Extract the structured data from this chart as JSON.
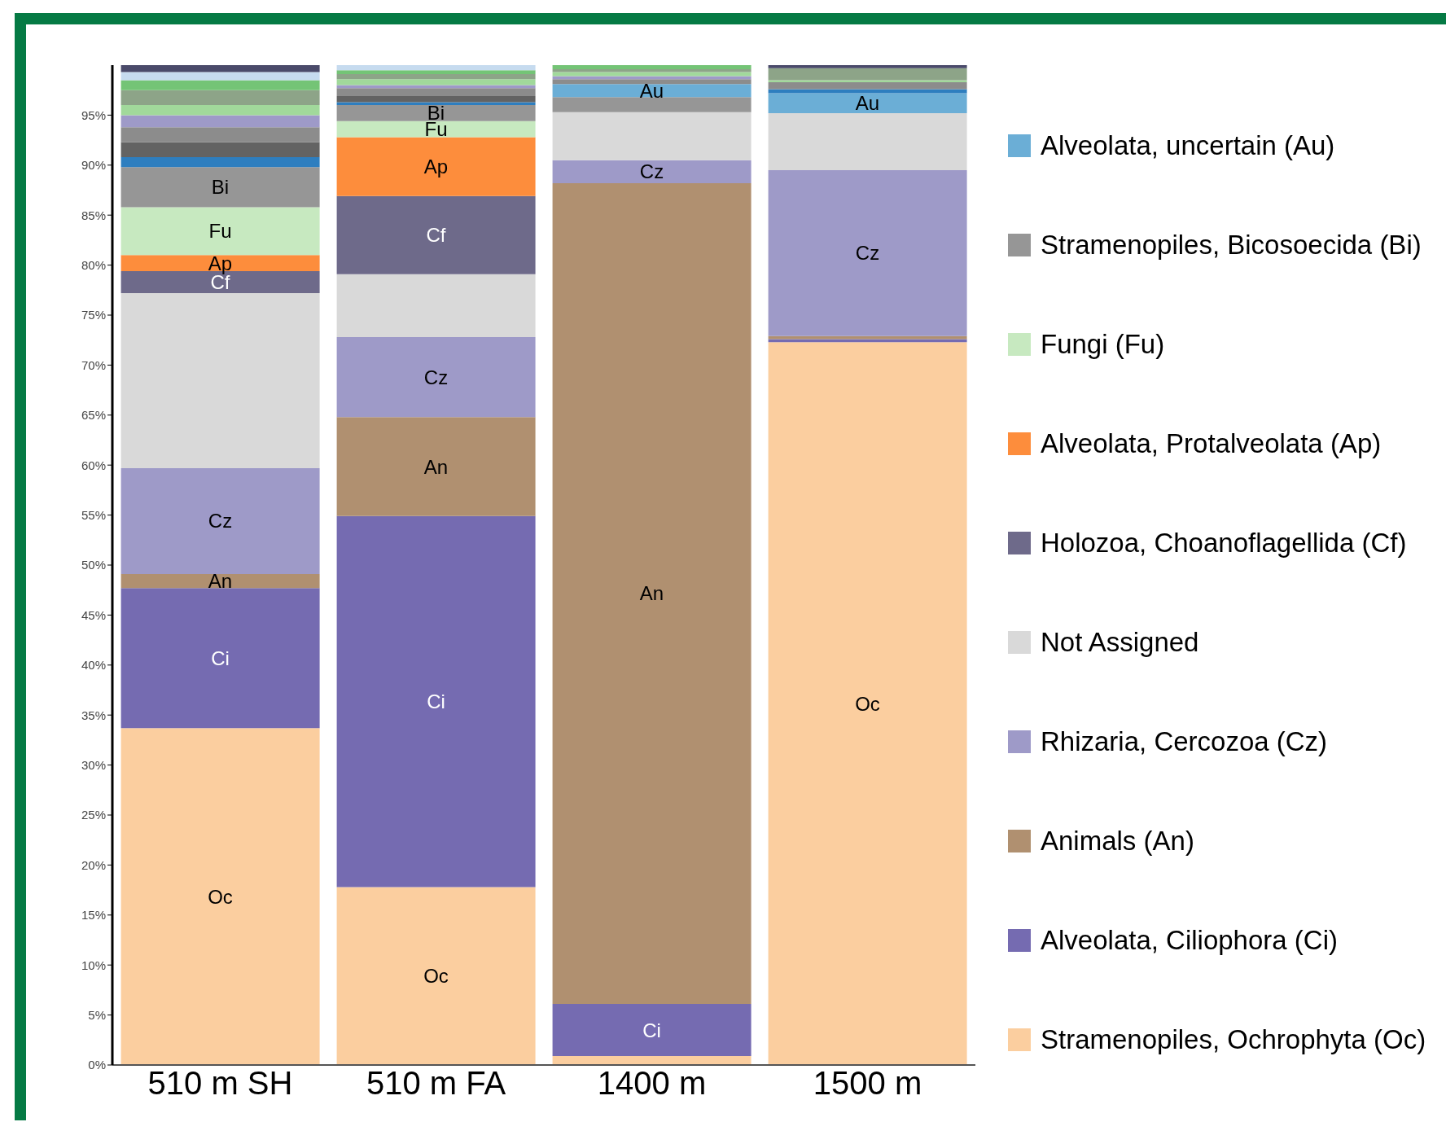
{
  "chart_data": {
    "type": "bar",
    "stacked": true,
    "categories": [
      "510 m SH",
      "510 m FA",
      "1400 m",
      "1500 m"
    ],
    "ylim": [
      0,
      100
    ],
    "yticks": [
      {
        "value": 0,
        "label": "0%"
      },
      {
        "value": 5,
        "label": "5%"
      },
      {
        "value": 10,
        "label": "10%"
      },
      {
        "value": 15,
        "label": "15%"
      },
      {
        "value": 20,
        "label": "20%"
      },
      {
        "value": 25,
        "label": "25%"
      },
      {
        "value": 30,
        "label": "30%"
      },
      {
        "value": 35,
        "label": "35%"
      },
      {
        "value": 40,
        "label": "40%"
      },
      {
        "value": 45,
        "label": "45%"
      },
      {
        "value": 50,
        "label": "50%"
      },
      {
        "value": 55,
        "label": "55%"
      },
      {
        "value": 60,
        "label": "60%"
      },
      {
        "value": 65,
        "label": "65%"
      },
      {
        "value": 70,
        "label": "70%"
      },
      {
        "value": 75,
        "label": "75%"
      },
      {
        "value": 80,
        "label": "80%"
      },
      {
        "value": 85,
        "label": "85%"
      },
      {
        "value": 90,
        "label": "90%"
      },
      {
        "value": 95,
        "label": "95%"
      }
    ],
    "legend": "right",
    "grid": false,
    "series": [
      {
        "name": "Stramenopiles, Ochrophyta (Oc)",
        "color": "#fbce9f",
        "values": [
          33.7,
          17.8,
          0.9,
          72.3
        ],
        "value_labels": [
          "Oc",
          "Oc",
          null,
          "Oc"
        ]
      },
      {
        "name": "Alveolata, Ciliophora (Ci)",
        "color": "#756bb1",
        "values": [
          14.0,
          37.1,
          5.2,
          0.3
        ],
        "value_labels": [
          "Ci",
          "Ci",
          "Ci",
          null
        ]
      },
      {
        "name": "Animals (An)",
        "color": "#b09070",
        "values": [
          1.4,
          9.9,
          82.1,
          0.3
        ],
        "value_labels": [
          "An",
          "An",
          "An",
          null
        ]
      },
      {
        "name": "Rhizaria, Cercozoa (Cz)",
        "color": "#9e9ac8",
        "values": [
          10.6,
          8.0,
          2.3,
          16.6
        ],
        "value_labels": [
          "Cz",
          "Cz",
          "Cz",
          "Cz"
        ]
      },
      {
        "name": "Not Assigned",
        "color": "#d9d9d9",
        "values": [
          17.5,
          6.3,
          4.8,
          5.7
        ]
      },
      {
        "name": "Holozoa, Choanoflagellida (Cf)",
        "color": "#6e6a8a",
        "values": [
          2.2,
          7.8,
          0,
          0
        ],
        "value_labels": [
          "Cf",
          "Cf",
          null,
          null
        ]
      },
      {
        "name": "Alveolata, Protalveolata (Ap)",
        "color": "#fd8d3c",
        "values": [
          1.6,
          5.9,
          0,
          0
        ],
        "value_labels": [
          "Ap",
          "Ap",
          null,
          null
        ]
      },
      {
        "name": "Fungi (Fu)",
        "color": "#c7e9c0",
        "values": [
          4.8,
          1.6,
          0,
          0
        ],
        "value_labels": [
          "Fu",
          "Fu",
          null,
          null
        ]
      },
      {
        "name": "Stramenopiles, Bicosoecida (Bi)",
        "color": "#969696",
        "values": [
          4.0,
          1.6,
          1.5,
          0
        ],
        "value_labels": [
          "Bi",
          "Bi",
          null,
          null
        ]
      },
      {
        "name": "Alveolata, uncertain (Au)",
        "color": "#6baed6",
        "values": [
          0,
          0,
          1.3,
          2.0
        ],
        "value_labels": [
          null,
          null,
          "Au",
          "Au"
        ]
      },
      {
        "color": "#2e7ebf",
        "values": [
          1.0,
          0.3,
          0,
          0.4
        ]
      },
      {
        "color": "#636363",
        "values": [
          1.5,
          0.6,
          0,
          0
        ]
      },
      {
        "color": "#8c8c8c",
        "values": [
          1.5,
          0.8,
          0.5,
          0.7
        ]
      },
      {
        "color": "#9e9ac8",
        "values": [
          1.2,
          0.3,
          0.3,
          0
        ]
      },
      {
        "color": "#a1d99b",
        "values": [
          1.0,
          0.6,
          0.4,
          0.2
        ]
      },
      {
        "color": "#8da488",
        "values": [
          1.5,
          0.5,
          0.3,
          1.2
        ]
      },
      {
        "color": "#74c476",
        "values": [
          1.0,
          0.4,
          0.4,
          0
        ]
      },
      {
        "color": "#c6dbef",
        "values": [
          0.8,
          0.5,
          0,
          0
        ]
      },
      {
        "color": "#4a4a6a",
        "values": [
          0.7,
          0,
          0,
          0.3
        ]
      }
    ]
  }
}
